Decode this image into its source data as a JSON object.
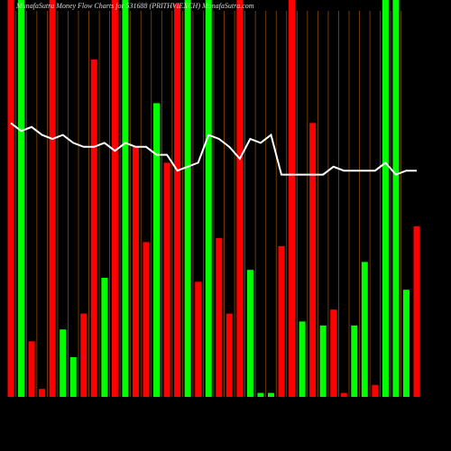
{
  "chart_data": {
    "type": "bar",
    "title": "MunafaSutra  Money Flow  Charts for 531688 (PRITHVIEXCH) MunafaSutra.com",
    "ylim": [
      0,
      100
    ],
    "bars": {
      "values": [
        100,
        100,
        14,
        2,
        100,
        17,
        10,
        21,
        85,
        30,
        100,
        100,
        63,
        39,
        74,
        59,
        99,
        100,
        29,
        100,
        40,
        21,
        100,
        32,
        1,
        1,
        38,
        100,
        19,
        69,
        18,
        22,
        1,
        18,
        34,
        3,
        100,
        100,
        27,
        43
      ],
      "colors": [
        "#ff0000",
        "#00ff00",
        "#ff0000",
        "#ff0000",
        "#ff0000",
        "#00ff00",
        "#00ff00",
        "#ff0000",
        "#ff0000",
        "#00ff00",
        "#ff0000",
        "#00ff00",
        "#ff0000",
        "#ff0000",
        "#00ff00",
        "#ff0000",
        "#ff0000",
        "#00ff00",
        "#ff0000",
        "#00ff00",
        "#ff0000",
        "#ff0000",
        "#ff0000",
        "#00ff00",
        "#00ff00",
        "#00ff00",
        "#ff0000",
        "#ff0000",
        "#00ff00",
        "#ff0000",
        "#00ff00",
        "#ff0000",
        "#ff0000",
        "#00ff00",
        "#00ff00",
        "#ff0000",
        "#00ff00",
        "#00ff00",
        "#00ff00",
        "#ff0000"
      ]
    },
    "line": {
      "color": "#ffffff",
      "values": [
        69,
        67,
        68,
        66,
        65,
        66,
        64,
        63,
        63,
        64,
        62,
        64,
        63,
        63,
        61,
        61,
        57,
        58,
        59,
        66,
        65,
        63,
        60,
        65,
        64,
        66,
        56,
        56,
        56,
        56,
        56,
        58,
        57,
        57,
        57,
        57,
        59,
        56,
        57,
        57
      ]
    }
  }
}
